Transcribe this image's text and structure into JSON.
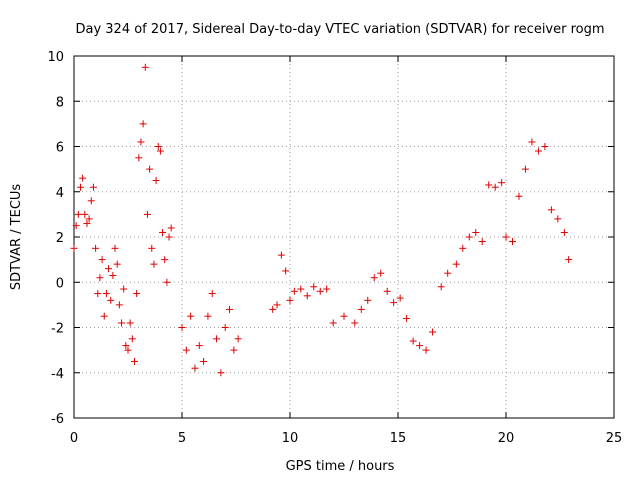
{
  "chart_data": {
    "type": "scatter",
    "title": "Day 324 of 2017, Sidereal Day-to-day VTEC variation (SDTVAR) for receiver rogm",
    "xlabel": "GPS time / hours",
    "ylabel": "SDTVAR / TECUs",
    "xlim": [
      0,
      25
    ],
    "ylim": [
      -6,
      10
    ],
    "xticks": [
      0,
      5,
      10,
      15,
      20,
      25
    ],
    "yticks": [
      -6,
      -4,
      -2,
      0,
      2,
      4,
      6,
      8,
      10
    ],
    "grid": true,
    "marker": "+",
    "color": "#e00000",
    "series": [
      {
        "name": "SDTVAR",
        "x": [
          0.0,
          0.1,
          0.2,
          0.3,
          0.4,
          0.5,
          0.6,
          0.7,
          0.8,
          0.9,
          1.0,
          1.1,
          1.2,
          1.3,
          1.4,
          1.5,
          1.6,
          1.7,
          1.8,
          1.9,
          2.0,
          2.1,
          2.2,
          2.3,
          2.4,
          2.5,
          2.6,
          2.7,
          2.8,
          2.9,
          3.0,
          3.1,
          3.2,
          3.3,
          3.4,
          3.5,
          3.6,
          3.7,
          3.8,
          3.9,
          4.0,
          4.1,
          4.2,
          4.3,
          4.4,
          4.5,
          5.0,
          5.2,
          5.4,
          5.6,
          5.8,
          6.0,
          6.2,
          6.4,
          6.6,
          6.8,
          7.0,
          7.2,
          7.4,
          7.6,
          9.2,
          9.4,
          9.6,
          9.8,
          10.0,
          10.2,
          10.5,
          10.8,
          11.1,
          11.4,
          11.7,
          12.0,
          12.5,
          13.0,
          13.3,
          13.6,
          13.9,
          14.2,
          14.5,
          14.8,
          15.1,
          15.4,
          15.7,
          16.0,
          16.3,
          16.6,
          17.0,
          17.3,
          17.7,
          18.0,
          18.3,
          18.6,
          18.9,
          19.2,
          19.5,
          19.8,
          20.0,
          20.3,
          20.6,
          20.9,
          21.2,
          21.5,
          21.8,
          22.1,
          22.4,
          22.7,
          22.9
        ],
        "y": [
          1.5,
          2.5,
          3.0,
          4.2,
          4.6,
          3.0,
          2.6,
          2.8,
          3.6,
          4.2,
          1.5,
          -0.5,
          0.2,
          1.0,
          -1.5,
          -0.5,
          0.6,
          -0.8,
          0.3,
          1.5,
          0.8,
          -1.0,
          -1.8,
          -0.3,
          -2.8,
          -3.0,
          -1.8,
          -2.5,
          -3.5,
          -0.5,
          5.5,
          6.2,
          7.0,
          9.5,
          3.0,
          5.0,
          1.5,
          0.8,
          4.5,
          6.0,
          5.8,
          2.2,
          1.0,
          0.0,
          2.0,
          2.4,
          -2.0,
          -3.0,
          -1.5,
          -3.8,
          -2.8,
          -3.5,
          -1.5,
          -0.5,
          -2.5,
          -4.0,
          -2.0,
          -1.2,
          -3.0,
          -2.5,
          -1.2,
          -1.0,
          1.2,
          0.5,
          -0.8,
          -0.4,
          -0.3,
          -0.6,
          -0.2,
          -0.4,
          -0.3,
          -1.8,
          -1.5,
          -1.8,
          -1.2,
          -0.8,
          0.2,
          0.4,
          -0.4,
          -0.9,
          -0.7,
          -1.6,
          -2.6,
          -2.8,
          -3.0,
          -2.2,
          -0.2,
          0.4,
          0.8,
          1.5,
          2.0,
          2.2,
          1.8,
          4.3,
          4.2,
          4.4,
          2.0,
          1.8,
          3.8,
          5.0,
          6.2,
          5.8,
          6.0,
          3.2,
          2.8,
          2.2,
          1.0
        ]
      }
    ]
  }
}
